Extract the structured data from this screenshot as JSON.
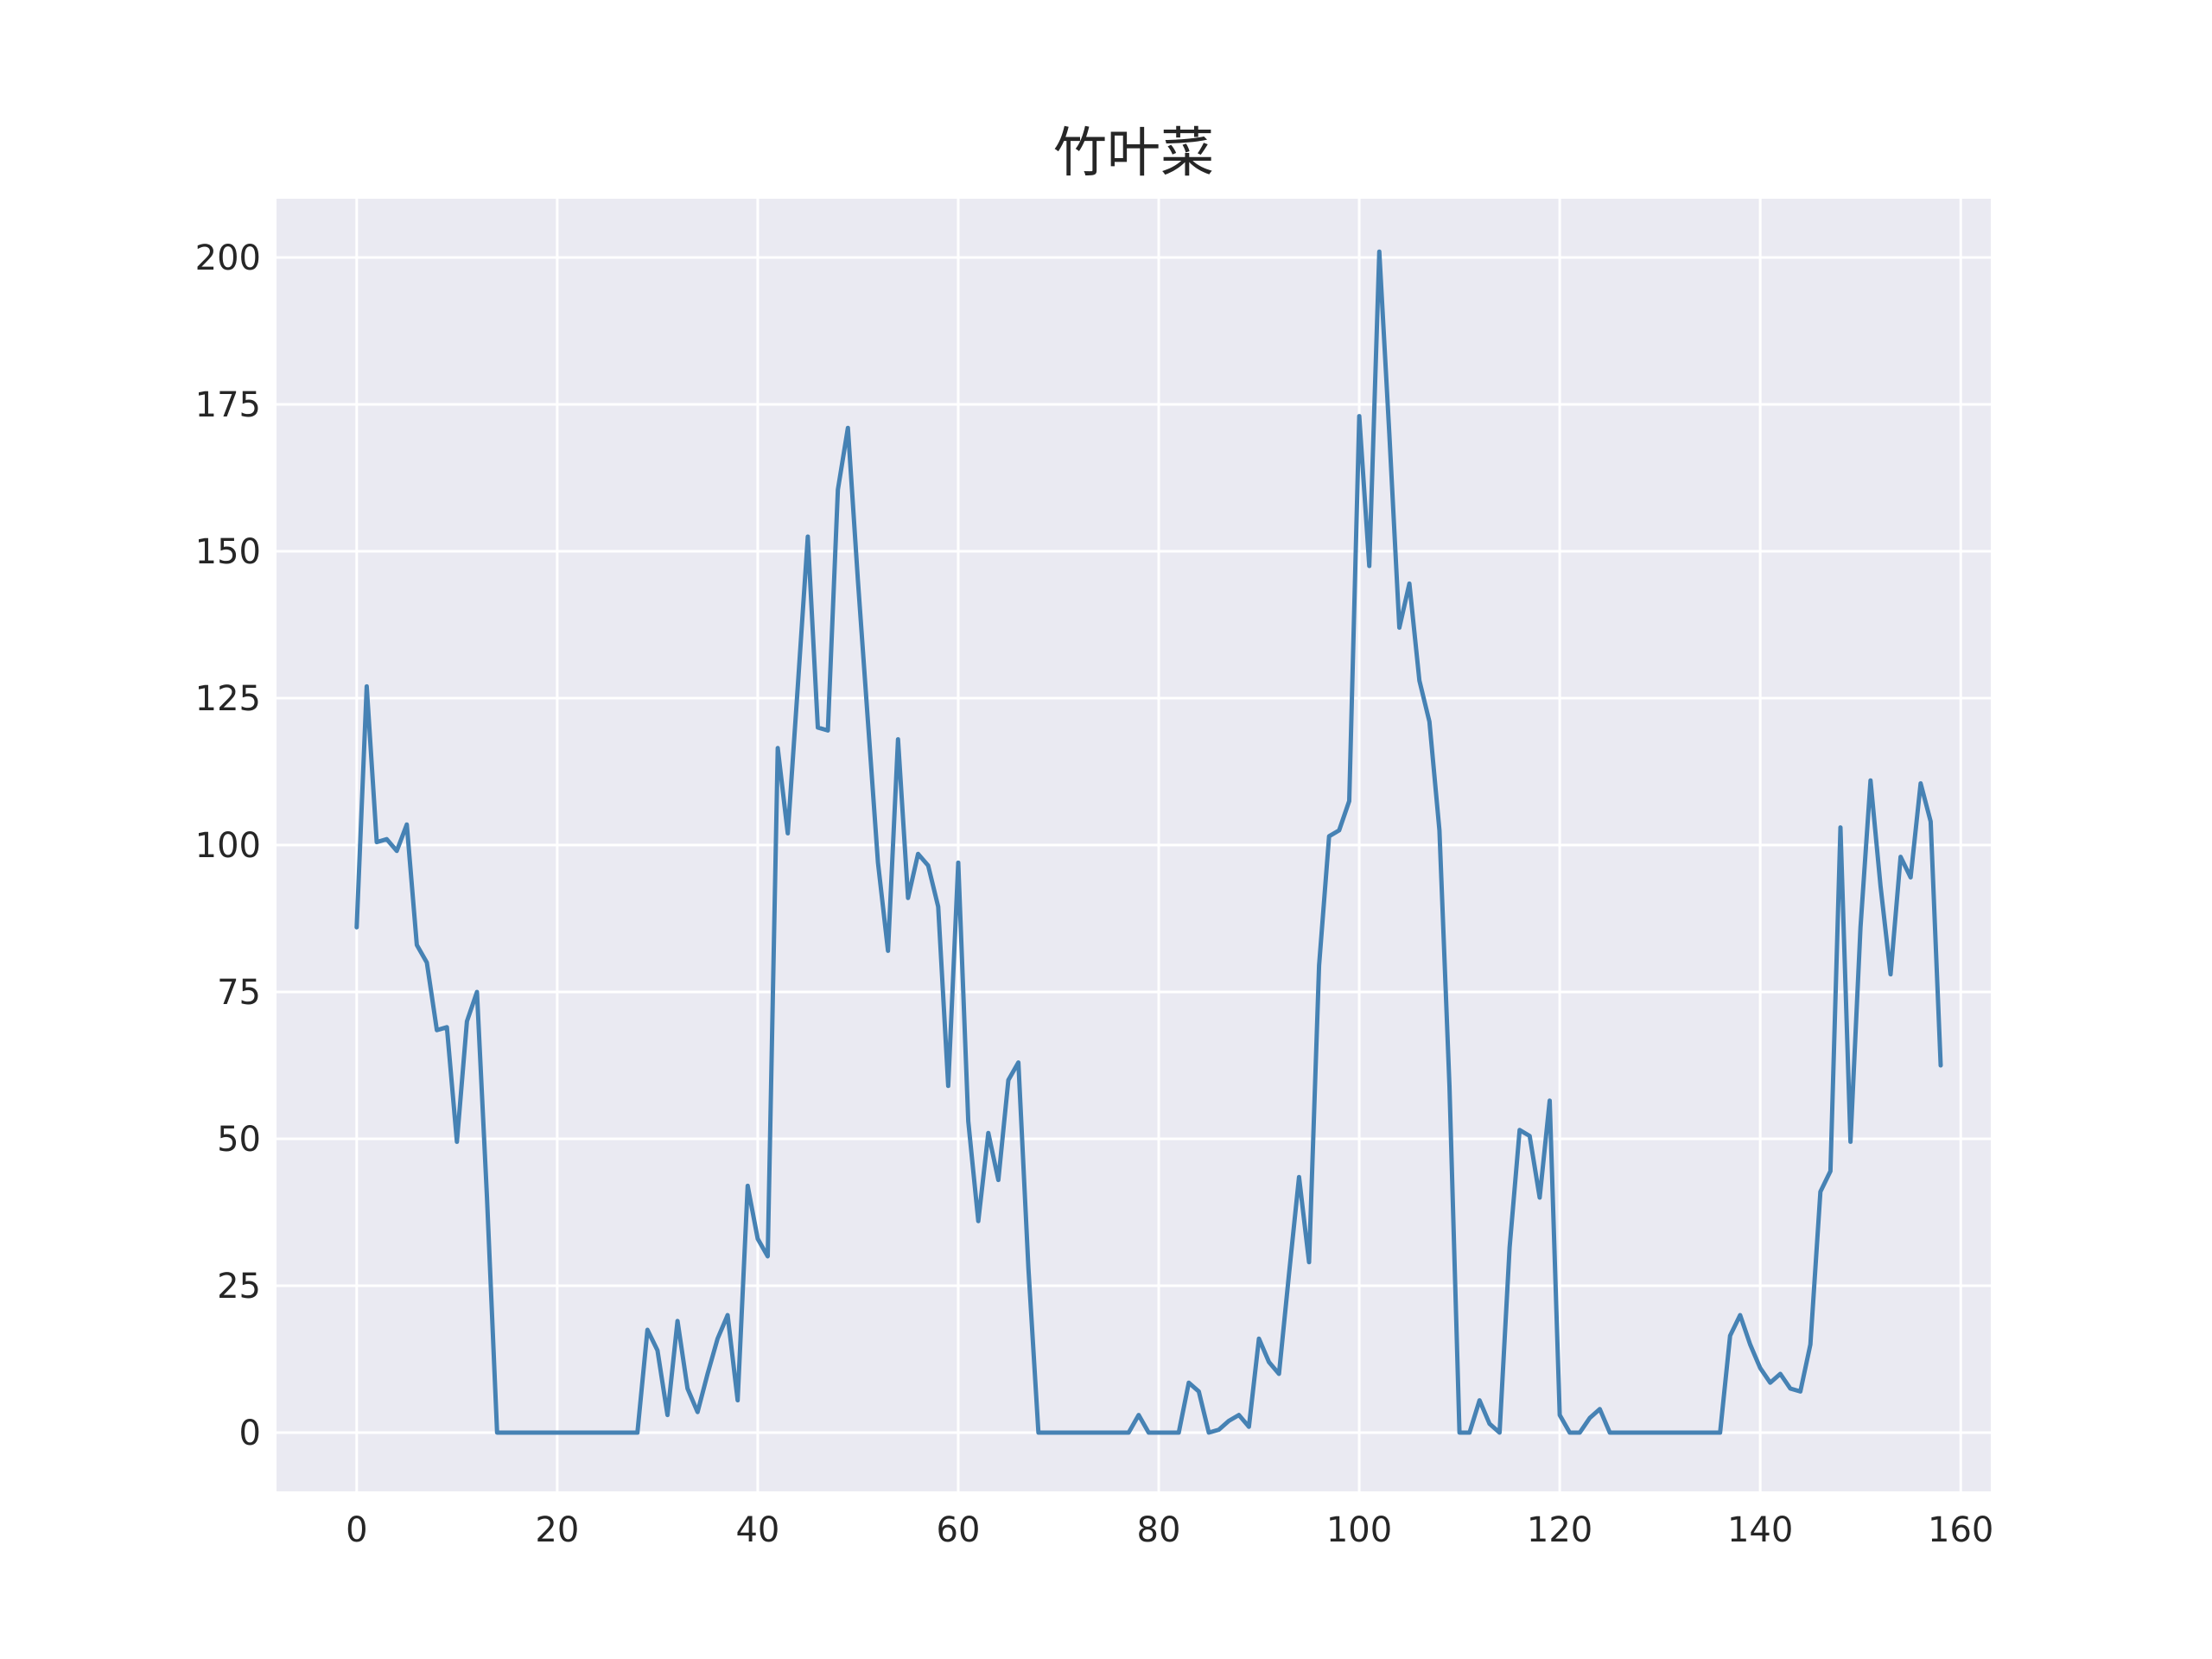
{
  "chart_data": {
    "type": "line",
    "title": "竹叶菜",
    "xlabel": "",
    "ylabel": "",
    "xlim": [
      -8,
      163
    ],
    "ylim": [
      -10,
      210
    ],
    "xticks": [
      0,
      20,
      40,
      60,
      80,
      100,
      120,
      140,
      160
    ],
    "yticks": [
      0,
      25,
      50,
      75,
      100,
      125,
      150,
      175,
      200
    ],
    "grid": true,
    "legend": "none",
    "colors": {
      "line": "#4682b4",
      "background": "#eaeaf2",
      "grid": "#ffffff",
      "text": "#262626"
    },
    "series": [
      {
        "values": [
          86,
          127,
          100.5,
          101,
          99,
          103.5,
          83,
          80,
          68.5,
          69,
          49.5,
          70,
          75,
          40,
          0,
          0,
          0,
          0,
          0,
          0,
          0,
          0,
          0,
          0,
          0,
          0,
          0,
          0,
          0,
          17.5,
          14,
          3,
          19,
          7.5,
          3.5,
          10,
          16,
          20,
          5.5,
          42,
          33,
          30,
          116.5,
          102,
          127,
          152.5,
          120,
          119.5,
          160.5,
          171,
          145,
          121,
          97,
          82,
          118,
          91,
          98.5,
          96.5,
          89.5,
          59,
          97,
          53,
          36,
          51,
          43,
          60,
          63,
          28,
          0,
          0,
          0,
          0,
          0,
          0,
          0,
          0,
          0,
          0,
          3,
          0,
          0,
          0,
          0,
          8.5,
          7,
          0,
          0.5,
          2,
          3,
          1,
          16,
          12,
          10,
          27,
          43.5,
          29,
          79.5,
          101.5,
          102.5,
          107.5,
          173,
          147.5,
          201,
          170,
          137,
          144.5,
          128,
          121,
          102.5,
          59,
          0,
          0,
          5.5,
          1.5,
          0,
          31.5,
          51.5,
          50.5,
          40,
          56.5,
          3,
          0,
          0,
          2.5,
          4,
          0,
          0,
          0,
          0,
          0,
          0,
          0,
          0,
          0,
          0,
          0,
          0,
          16.5,
          20,
          15,
          11,
          8.5,
          10,
          7.5,
          7,
          15,
          41,
          44.5,
          103,
          49.5,
          86,
          111,
          93,
          78,
          98,
          94.5,
          110.5,
          104,
          62.5
        ]
      }
    ]
  }
}
